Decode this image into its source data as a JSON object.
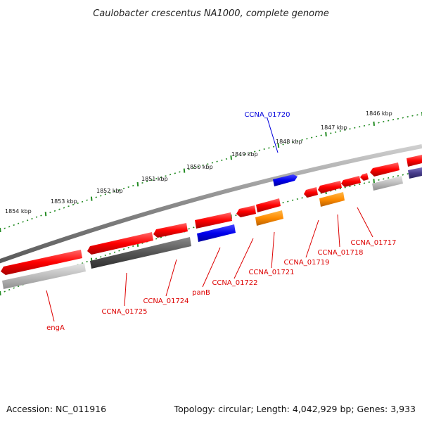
{
  "title": "Caulobacter crescentus NA1000, complete genome",
  "footer": {
    "accession": "Accession: NC_011916",
    "topology": "Topology: circular; Length: 4,042,929 bp; Genes: 3,933"
  },
  "colors": {
    "forward": "#ff0000",
    "reverse_label": "#dd0000",
    "highlight": "#0000dd",
    "tick": "#228b22",
    "backbone": "#8a8a8a",
    "orange": "#ff8c00",
    "dark_grey": "#555555",
    "light_grey": "#bbbbbb",
    "purple": "#483d8b"
  },
  "kbp_labels": [
    "1846 kbp",
    "1847 kbp",
    "1848 kbp",
    "1849 kbp",
    "1850 kbp",
    "1851 kbp",
    "1852 kbp",
    "1853 kbp",
    "1854 kbp"
  ],
  "gene_labels": {
    "top": [
      "CCNA_01720"
    ],
    "bottom": [
      "CCNA_01717",
      "CCNA_01718",
      "CCNA_01719",
      "CCNA_01721",
      "CCNA_01722",
      "panB",
      "CCNA_01724",
      "CCNA_01725",
      "engA"
    ]
  }
}
